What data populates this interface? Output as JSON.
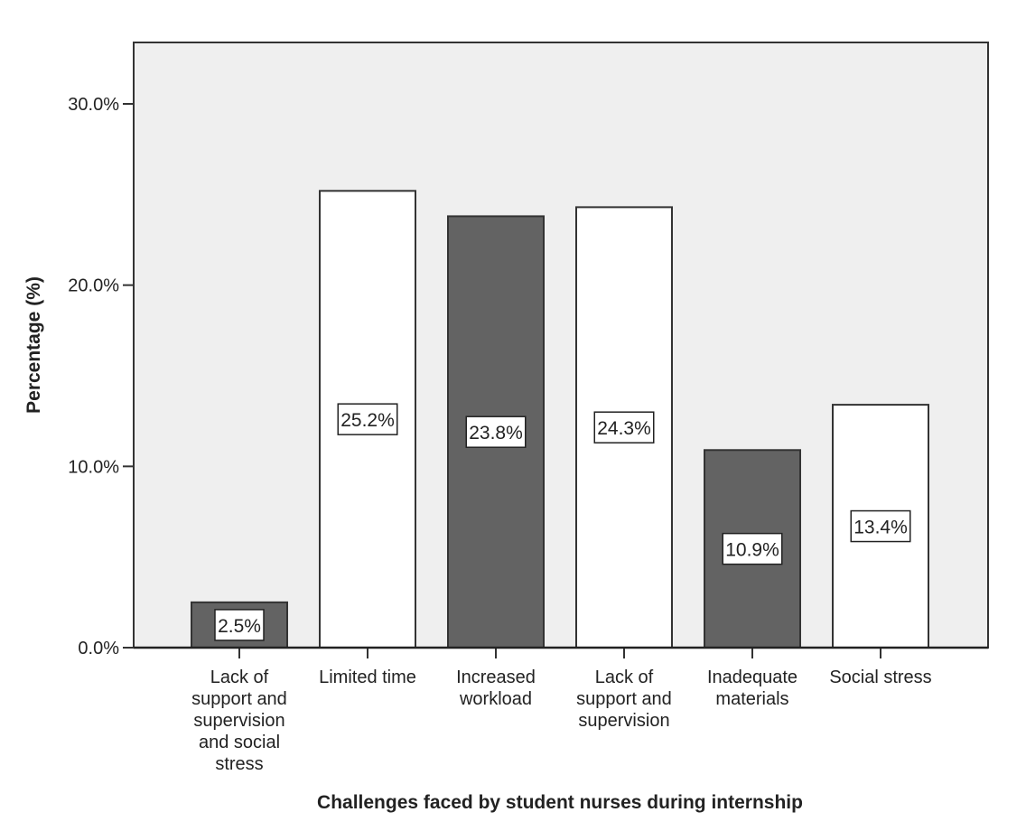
{
  "chart_data": {
    "type": "bar",
    "title": "",
    "xlabel": "Challenges faced by student nurses during internship",
    "ylabel": "Percentage (%)",
    "ylim": [
      0,
      33.4
    ],
    "yticks": [
      0,
      10,
      20,
      30
    ],
    "ytick_labels": [
      "0.0%",
      "10.0%",
      "20.0%",
      "30.0%"
    ],
    "grid": false,
    "categories": [
      [
        "Lack of",
        "support and",
        "supervision",
        "and social",
        "stress"
      ],
      [
        "Limited time"
      ],
      [
        "Increased",
        "workload"
      ],
      [
        "Lack of",
        "support and",
        "supervision"
      ],
      [
        "Inadequate",
        "materials"
      ],
      [
        "Social stress"
      ]
    ],
    "values": [
      2.5,
      25.2,
      23.8,
      24.3,
      10.9,
      13.4
    ],
    "data_labels": [
      "2.5%",
      "25.2%",
      "23.8%",
      "24.3%",
      "10.9%",
      "13.4%"
    ],
    "bar_colors": [
      "#636363",
      "#ffffff",
      "#636363",
      "#ffffff",
      "#636363",
      "#ffffff"
    ],
    "background_color": "#efefef"
  }
}
